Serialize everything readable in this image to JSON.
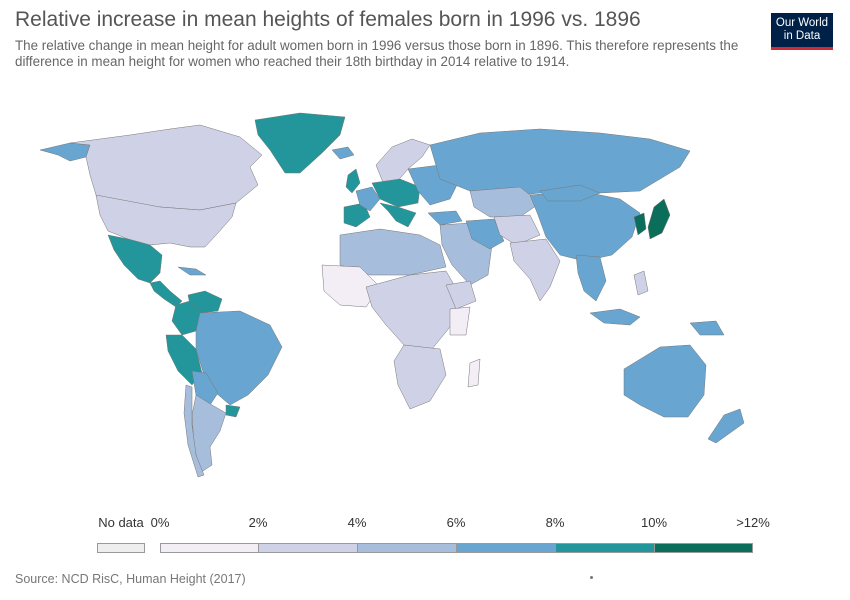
{
  "header": {
    "title": "Relative increase in mean heights of females born in 1996 vs. 1896",
    "subtitle": "The relative change in mean height for adult women born in 1996 versus those born in 1896. This therefore represents the difference in mean height for women who reached their 18th birthday in 2014 relative to 1914."
  },
  "logo": {
    "line1": "Our World",
    "line2": "in Data",
    "bg_color": "#002147",
    "accent_color": "#cf2a36"
  },
  "legend": {
    "no_data_label": "No data",
    "no_data_color": "#eeeeee",
    "bins": [
      {
        "label": "0%",
        "color": "#f3eef6"
      },
      {
        "label": "2%",
        "color": "#cfd1e6"
      },
      {
        "label": "4%",
        "color": "#a7bddc"
      },
      {
        "label": "6%",
        "color": "#68a6d1"
      },
      {
        "label": "8%",
        "color": "#22969a"
      },
      {
        "label": "10%",
        "color": "#0b6e5a"
      }
    ],
    "end_label": ">12%"
  },
  "footer": {
    "source": "Source: NCD RisC, Human Height (2017)"
  }
}
